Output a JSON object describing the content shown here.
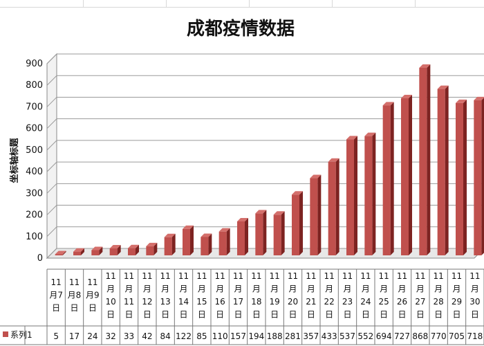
{
  "chart_data": {
    "type": "bar",
    "title": "成都疫情数据",
    "ylabel": "坐标轴标题",
    "xlabel": "",
    "ylim": [
      0,
      900
    ],
    "yticks": [
      0,
      100,
      200,
      300,
      400,
      500,
      600,
      700,
      800,
      900
    ],
    "grid": true,
    "categories": [
      [
        "11",
        "月7",
        "日"
      ],
      [
        "11",
        "月8",
        "日"
      ],
      [
        "11",
        "月9",
        "日"
      ],
      [
        "11",
        "月",
        "10",
        "日"
      ],
      [
        "11",
        "月",
        "11",
        "日"
      ],
      [
        "11",
        "月",
        "12",
        "日"
      ],
      [
        "11",
        "月",
        "13",
        "日"
      ],
      [
        "11",
        "月",
        "14",
        "日"
      ],
      [
        "11",
        "月",
        "15",
        "日"
      ],
      [
        "11",
        "月",
        "16",
        "日"
      ],
      [
        "11",
        "月",
        "17",
        "日"
      ],
      [
        "11",
        "月",
        "18",
        "日"
      ],
      [
        "11",
        "月",
        "19",
        "日"
      ],
      [
        "11",
        "月",
        "20",
        "日"
      ],
      [
        "11",
        "月",
        "21",
        "日"
      ],
      [
        "11",
        "月",
        "22",
        "日"
      ],
      [
        "11",
        "月",
        "23",
        "日"
      ],
      [
        "11",
        "月",
        "24",
        "日"
      ],
      [
        "11",
        "月",
        "25",
        "日"
      ],
      [
        "11",
        "月",
        "26",
        "日"
      ],
      [
        "11",
        "月",
        "27",
        "日"
      ],
      [
        "11",
        "月",
        "28",
        "日"
      ],
      [
        "11",
        "月",
        "29",
        "日"
      ],
      [
        "11",
        "月",
        "30",
        "日"
      ]
    ],
    "series": [
      {
        "name": "系列1",
        "color": "#c0504d",
        "values": [
          5,
          17,
          24,
          32,
          33,
          42,
          84,
          122,
          85,
          110,
          157,
          194,
          188,
          281,
          357,
          433,
          537,
          552,
          694,
          727,
          868,
          770,
          705,
          718
        ]
      }
    ],
    "legend": "bottom-left data table"
  }
}
